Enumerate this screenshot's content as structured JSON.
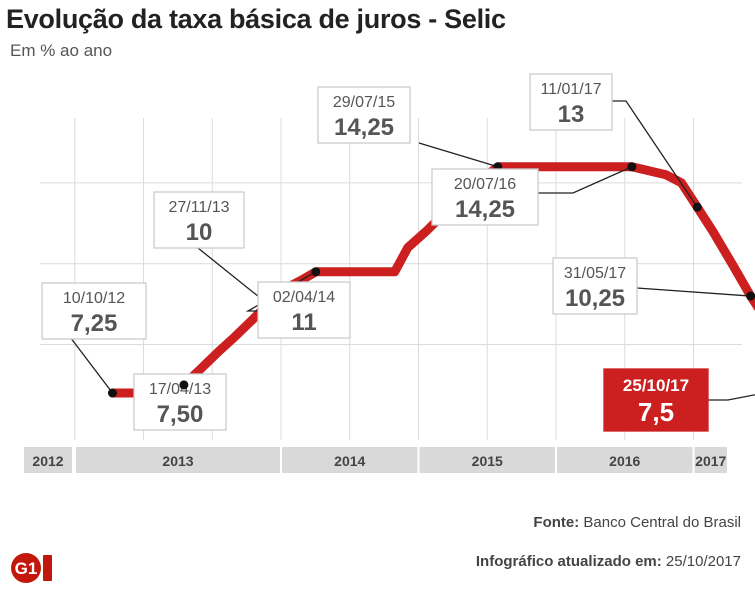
{
  "title": "Evolução da taxa básica de juros - Selic",
  "subtitle": "Em % ao ano",
  "source_label": "Fonte:",
  "source_value": "Banco Central do Brasil",
  "updated_label": "Infográfico atualizado em:",
  "updated_value": "25/10/2017",
  "logo_text": "G1",
  "colors": {
    "line": "#cc1f1f",
    "highlight": "#cc1f1f",
    "grid": "#dcdcdc",
    "year_band": "#d9d9d9",
    "annotation_border": "#cccccc"
  },
  "chart_data": {
    "type": "line",
    "title": "Evolução da taxa básica de juros - Selic",
    "ylabel": "Em % ao ano",
    "x_range": [
      "2012-01",
      "2017-12"
    ],
    "x_tick_labels": [
      "2012",
      "2013",
      "2014",
      "2015",
      "2016",
      "2017"
    ],
    "grid": true,
    "series": [
      {
        "points": [
          {
            "x": "2012-10-10",
            "y": 7.25
          },
          {
            "x": "2013-01-15",
            "y": 7.25
          },
          {
            "x": "2013-03-10",
            "y": 7.5
          },
          {
            "x": "2013-04-17",
            "y": 7.5
          },
          {
            "x": "2013-06-01",
            "y": 8.0
          },
          {
            "x": "2013-07-15",
            "y": 8.5
          },
          {
            "x": "2013-09-01",
            "y": 9.0
          },
          {
            "x": "2013-10-15",
            "y": 9.5
          },
          {
            "x": "2013-11-27",
            "y": 10.0
          },
          {
            "x": "2014-01-15",
            "y": 10.5
          },
          {
            "x": "2014-02-26",
            "y": 10.75
          },
          {
            "x": "2014-04-02",
            "y": 11.0
          },
          {
            "x": "2014-10-29",
            "y": 11.0
          },
          {
            "x": "2014-12-03",
            "y": 11.75
          },
          {
            "x": "2015-01-21",
            "y": 12.25
          },
          {
            "x": "2015-03-04",
            "y": 12.75
          },
          {
            "x": "2015-04-29",
            "y": 13.25
          },
          {
            "x": "2015-06-03",
            "y": 13.75
          },
          {
            "x": "2015-07-29",
            "y": 14.25
          },
          {
            "x": "2016-07-20",
            "y": 14.25
          },
          {
            "x": "2016-10-19",
            "y": 14.0
          },
          {
            "x": "2016-11-30",
            "y": 13.75
          },
          {
            "x": "2017-01-11",
            "y": 13.0
          },
          {
            "x": "2017-02-22",
            "y": 12.25
          },
          {
            "x": "2017-04-12",
            "y": 11.25
          },
          {
            "x": "2017-05-31",
            "y": 10.25
          },
          {
            "x": "2017-07-26",
            "y": 9.25
          },
          {
            "x": "2017-09-06",
            "y": 8.25
          },
          {
            "x": "2017-10-25",
            "y": 7.5
          }
        ]
      }
    ],
    "annotations": [
      {
        "date": "10/10/12",
        "value": "7,25",
        "x": "2012-10-10",
        "y": 7.25
      },
      {
        "date": "17/04/13",
        "value": "7,50",
        "x": "2013-04-17",
        "y": 7.5
      },
      {
        "date": "27/11/13",
        "value": "10",
        "x": "2013-11-27",
        "y": 10.0
      },
      {
        "date": "02/04/14",
        "value": "11",
        "x": "2014-04-02",
        "y": 11.0
      },
      {
        "date": "29/07/15",
        "value": "14,25",
        "x": "2015-07-29",
        "y": 14.25
      },
      {
        "date": "20/07/16",
        "value": "14,25",
        "x": "2016-07-20",
        "y": 14.25
      },
      {
        "date": "11/01/17",
        "value": "13",
        "x": "2017-01-11",
        "y": 13.0
      },
      {
        "date": "31/05/17",
        "value": "10,25",
        "x": "2017-05-31",
        "y": 10.25
      },
      {
        "date": "25/10/17",
        "value": "7,5",
        "x": "2017-10-25",
        "y": 7.5,
        "highlight": true
      }
    ]
  }
}
